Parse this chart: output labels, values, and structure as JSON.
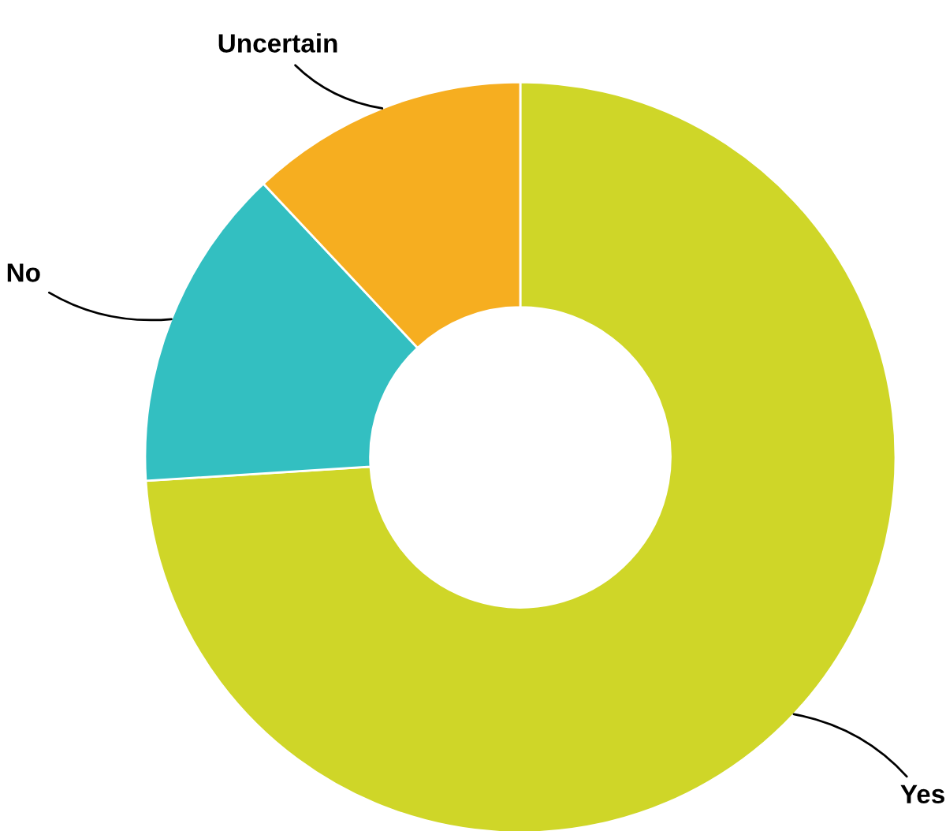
{
  "chart_data": {
    "type": "donut",
    "categories": [
      "Yes",
      "No",
      "Uncertain"
    ],
    "values": [
      74,
      14,
      12
    ],
    "colors": [
      "#cfd628",
      "#33bfc1",
      "#f6ae20"
    ]
  }
}
